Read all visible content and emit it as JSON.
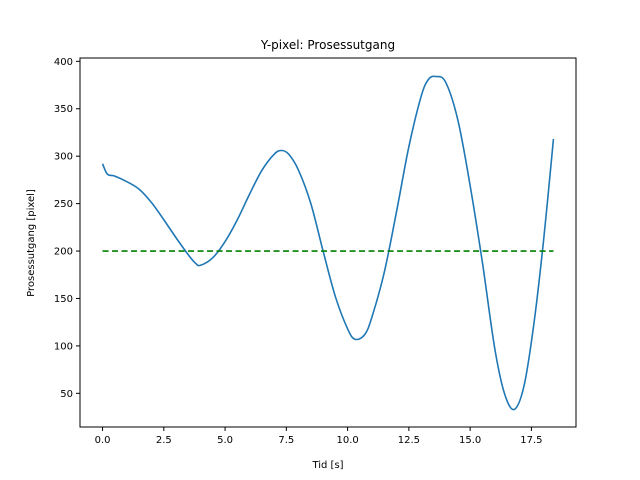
{
  "chart_data": {
    "type": "line",
    "title": "Y-pixel: Prosessutgang",
    "xlabel": "Tid [s]",
    "ylabel": "Prosessutgang [pixel]",
    "xlim": [
      -0.92,
      19.32
    ],
    "ylim": [
      14.5,
      403.5
    ],
    "grid": false,
    "xticks": [
      {
        "value": 0.0,
        "label": "0.0"
      },
      {
        "value": 2.5,
        "label": "2.5"
      },
      {
        "value": 5.0,
        "label": "5.0"
      },
      {
        "value": 7.5,
        "label": "7.5"
      },
      {
        "value": 10.0,
        "label": "10.0"
      },
      {
        "value": 12.5,
        "label": "12.5"
      },
      {
        "value": 15.0,
        "label": "15.0"
      },
      {
        "value": 17.5,
        "label": "17.5"
      }
    ],
    "yticks": [
      {
        "value": 50,
        "label": "50"
      },
      {
        "value": 100,
        "label": "100"
      },
      {
        "value": 150,
        "label": "150"
      },
      {
        "value": 200,
        "label": "200"
      },
      {
        "value": 250,
        "label": "250"
      },
      {
        "value": 300,
        "label": "300"
      },
      {
        "value": 350,
        "label": "350"
      },
      {
        "value": 400,
        "label": "400"
      }
    ],
    "series": [
      {
        "style": "solid",
        "color": "#1f77b4",
        "x": [
          0.0,
          0.2,
          0.5,
          1.0,
          1.5,
          2.0,
          2.5,
          3.0,
          3.5,
          3.8,
          4.0,
          4.5,
          5.0,
          5.5,
          6.0,
          6.5,
          7.0,
          7.3,
          7.6,
          8.0,
          8.5,
          9.0,
          9.5,
          10.0,
          10.3,
          10.7,
          11.0,
          11.5,
          12.0,
          12.5,
          13.0,
          13.3,
          13.6,
          14.0,
          14.5,
          15.0,
          15.5,
          16.0,
          16.4,
          16.8,
          17.2,
          17.6,
          18.0,
          18.4
        ],
        "y": [
          292,
          281,
          279,
          273,
          265,
          251,
          233,
          214,
          196,
          187,
          185,
          193,
          210,
          233,
          260,
          285,
          302,
          306,
          302,
          285,
          250,
          200,
          152,
          118,
          107,
          112,
          131,
          178,
          242,
          310,
          363,
          381,
          384,
          378,
          338,
          269,
          188,
          98,
          50,
          33,
          58,
          123,
          212,
          318
        ]
      },
      {
        "style": "dashed",
        "color": "#008000",
        "x": [
          0.0,
          18.4
        ],
        "y": [
          200,
          200
        ]
      }
    ]
  }
}
